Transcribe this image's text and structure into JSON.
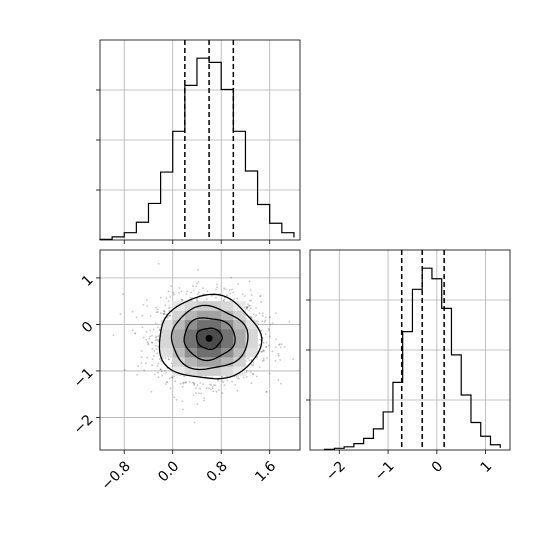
{
  "chart_data": {
    "type": "corner",
    "panels": [
      {
        "id": "x-marginal",
        "type": "histogram",
        "xlim": [
          -1.2,
          2.1
        ],
        "bins": [
          -1.2,
          -1.0,
          -0.8,
          -0.6,
          -0.4,
          -0.2,
          0.0,
          0.2,
          0.4,
          0.6,
          0.8,
          1.0,
          1.2,
          1.4,
          1.6,
          1.8,
          2.0
        ],
        "counts": [
          0.3,
          1.5,
          3.5,
          8.5,
          17.5,
          32.5,
          52.0,
          74.0,
          87.0,
          85.0,
          72.0,
          52.0,
          33.0,
          17.0,
          8.0,
          3.5,
          1.2
        ],
        "quantiles": [
          0.2,
          0.6,
          1.0
        ],
        "xticks": [
          "−0.8",
          "0.0",
          "0.8",
          "1.6"
        ],
        "grid": true
      },
      {
        "id": "joint",
        "type": "2d-histogram-contour",
        "xlim": [
          -1.2,
          2.1
        ],
        "ylim": [
          -2.7,
          1.6
        ],
        "center": {
          "x": 0.6,
          "y": -0.3
        },
        "sd": {
          "x": 0.42,
          "y": 0.45
        },
        "contour_levels_sigma": [
          0.5,
          1.0,
          1.5,
          2.0
        ],
        "xticks": [
          "−0.8",
          "0.0",
          "0.8",
          "1.6"
        ],
        "yticks": [
          "1",
          "0",
          "−1",
          "−2"
        ],
        "grid": true
      },
      {
        "id": "y-marginal",
        "type": "histogram",
        "xlim": [
          -2.6,
          1.5
        ],
        "bins": [
          -2.3,
          -2.1,
          -1.9,
          -1.7,
          -1.5,
          -1.3,
          -1.1,
          -0.9,
          -0.7,
          -0.5,
          -0.3,
          -0.1,
          0.1,
          0.3,
          0.5,
          0.7,
          0.9,
          1.1,
          1.3
        ],
        "counts": [
          0.3,
          0.8,
          1.5,
          3.0,
          5.5,
          10.0,
          18.0,
          32.0,
          56.0,
          76.0,
          86.0,
          81.0,
          67.0,
          45.0,
          26.0,
          13.0,
          6.5,
          2.5,
          1.0
        ],
        "quantiles": [
          -0.72,
          -0.3,
          0.15
        ],
        "xticks": [
          "−2",
          "−1",
          "0",
          "1"
        ],
        "grid": true
      }
    ]
  }
}
